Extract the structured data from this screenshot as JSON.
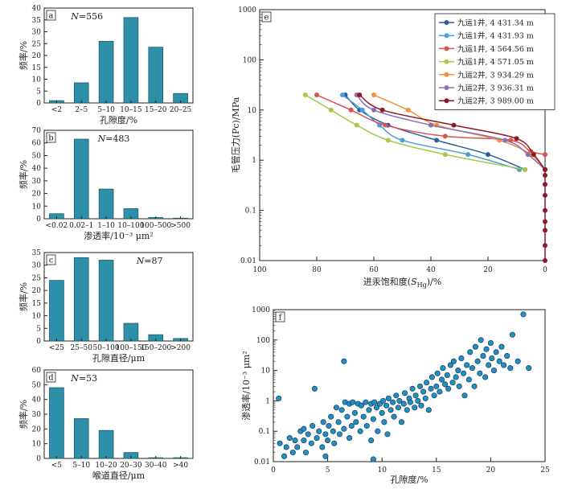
{
  "chart_data": [
    {
      "type": "bar",
      "panel": "a",
      "annotation": "N=556",
      "categories": [
        "<2",
        "2–5",
        "5–10",
        "10–15",
        "15–20",
        "20–25"
      ],
      "values": [
        1,
        8.5,
        26,
        36,
        23.5,
        4
      ],
      "xlabel": "孔隙度/%",
      "ylabel": "频率/%",
      "ylim": [
        0,
        40
      ],
      "yticks": [
        "0",
        "5",
        "10",
        "15",
        "20",
        "25",
        "30",
        "35",
        "40"
      ],
      "bar_color": "#2e8fa8"
    },
    {
      "type": "bar",
      "panel": "b",
      "annotation": "N=483",
      "categories": [
        "<0.02",
        "0.02–1",
        "1–10",
        "10–100",
        "100–500",
        ">500"
      ],
      "values": [
        4,
        63,
        23.5,
        8,
        1,
        0.5
      ],
      "xlabel": "渗透率/10⁻³ μm²",
      "ylabel": "频率/%",
      "ylim": [
        0,
        70
      ],
      "yticks": [
        "0",
        "10",
        "20",
        "30",
        "40",
        "50",
        "60",
        "70"
      ],
      "bar_color": "#2e8fa8"
    },
    {
      "type": "bar",
      "panel": "c",
      "annotation": "N=87",
      "categories": [
        "<25",
        "25–50",
        "50–100",
        "100–150",
        "150–200",
        ">200"
      ],
      "values": [
        24,
        33,
        32,
        7,
        2.5,
        1
      ],
      "xlabel": "孔隙直径/μm",
      "ylabel": "频率/%",
      "ylim": [
        0,
        35
      ],
      "yticks": [
        "0",
        "5",
        "10",
        "15",
        "20",
        "25",
        "30",
        "35"
      ],
      "bar_color": "#2e8fa8"
    },
    {
      "type": "bar",
      "panel": "d",
      "annotation": "N=53",
      "categories": [
        "<5",
        "5–10",
        "10–20",
        "20–30",
        "30–40",
        ">40"
      ],
      "values": [
        48,
        27,
        19,
        4,
        0.5,
        0.5
      ],
      "xlabel": "喉道直径/μm",
      "ylabel": "频率/%",
      "ylim": [
        0,
        60
      ],
      "yticks": [
        "0",
        "10",
        "20",
        "30",
        "40",
        "50",
        "60"
      ],
      "bar_color": "#2e8fa8"
    },
    {
      "type": "line",
      "panel": "e",
      "xlabel_prefix": "进汞饱和度(",
      "xlabel_var": "S",
      "xlabel_sub": "Hg",
      "xlabel_suffix": ")/%",
      "ylabel": "毛管压力(Pc)/MPa",
      "xlim": [
        100,
        0
      ],
      "ylim": [
        0.01,
        1000
      ],
      "yscale": "log",
      "xticks": [
        "100",
        "80",
        "60",
        "40",
        "20",
        "0"
      ],
      "yticks": [
        "0.01",
        "0.1",
        "1",
        "10",
        "100",
        "1000"
      ],
      "legend_position": "top-right",
      "common_tail": [
        [
          0,
          0.65
        ],
        [
          0,
          0.5
        ],
        [
          0,
          0.33
        ],
        [
          0,
          0.2
        ],
        [
          0,
          0.1
        ],
        [
          0,
          0.06
        ],
        [
          0,
          0.04
        ],
        [
          0,
          0.02
        ],
        [
          0,
          0.01
        ]
      ],
      "series": [
        {
          "name": "九运1井, 4 431.34 m",
          "color": "#2c5f9e",
          "points": [
            [
              70,
              20
            ],
            [
              65,
              10
            ],
            [
              55,
              5
            ],
            [
              38,
              2.5
            ],
            [
              20,
              1.3
            ],
            [
              7,
              0.65
            ]
          ]
        },
        {
          "name": "九运1井, 4 431.93 m",
          "color": "#4a9fd8",
          "points": [
            [
              71,
              20
            ],
            [
              64,
              10
            ],
            [
              58,
              5
            ],
            [
              50,
              2.5
            ],
            [
              27,
              1.3
            ],
            [
              9,
              0.65
            ]
          ]
        },
        {
          "name": "九运1井, 4 564.56 m",
          "color": "#d9534f",
          "points": [
            [
              80,
              20
            ],
            [
              68,
              10
            ],
            [
              56,
              5
            ],
            [
              35,
              3
            ],
            [
              12,
              2.5
            ],
            [
              5,
              1.5
            ],
            [
              0,
              1.3
            ]
          ]
        },
        {
          "name": "九运1井, 4 571.05 m",
          "color": "#a8c84a",
          "points": [
            [
              84,
              20
            ],
            [
              75,
              10
            ],
            [
              66,
              5
            ],
            [
              55,
              2.5
            ],
            [
              35,
              1.3
            ],
            [
              7,
              0.65
            ]
          ]
        },
        {
          "name": "九运2井, 3 934.29 m",
          "color": "#f0923a",
          "points": [
            [
              60,
              20
            ],
            [
              48,
              10
            ],
            [
              38,
              5
            ],
            [
              16,
              2.5
            ],
            [
              5,
              1.3
            ],
            [
              0,
              0.65
            ]
          ]
        },
        {
          "name": "九运2井, 3 936.31 m",
          "color": "#8a6fb8",
          "points": [
            [
              66,
              20
            ],
            [
              60,
              10
            ],
            [
              40,
              5
            ],
            [
              14,
              2.5
            ],
            [
              6,
              1.3
            ],
            [
              0,
              0.65
            ]
          ]
        },
        {
          "name": "九运2井, 3 989.00 m",
          "color": "#8b1a2b",
          "points": [
            [
              65,
              20
            ],
            [
              57,
              10
            ],
            [
              32,
              5
            ],
            [
              10,
              2.7
            ],
            [
              4,
              1.3
            ],
            [
              0,
              0.65
            ]
          ]
        }
      ]
    },
    {
      "type": "scatter",
      "panel": "f",
      "xlabel": "孔隙度/%",
      "ylabel": "渗透率/10⁻³ μm²",
      "xlim": [
        0,
        25
      ],
      "ylim": [
        0.01,
        1000
      ],
      "yscale": "log",
      "xticks": [
        "0",
        "5",
        "10",
        "15",
        "20",
        "25"
      ],
      "yticks": [
        "0.01",
        "0.1",
        "1",
        "10",
        "100",
        "1000"
      ],
      "marker_color": "#1f8fc4",
      "marker_edge": "#1a3a52",
      "points": [
        [
          0.5,
          1.2
        ],
        [
          0.6,
          0.04
        ],
        [
          1.0,
          0.015
        ],
        [
          1.2,
          0.03
        ],
        [
          1.5,
          0.06
        ],
        [
          1.8,
          0.02
        ],
        [
          2.0,
          0.05
        ],
        [
          2.2,
          0.03
        ],
        [
          2.5,
          0.1
        ],
        [
          2.8,
          0.05
        ],
        [
          3.0,
          0.02
        ],
        [
          3.2,
          0.08
        ],
        [
          3.5,
          0.04
        ],
        [
          3.6,
          0.15
        ],
        [
          3.8,
          2.5
        ],
        [
          4.0,
          0.06
        ],
        [
          4.2,
          0.1
        ],
        [
          4.5,
          0.03
        ],
        [
          4.6,
          0.2
        ],
        [
          4.8,
          0.08
        ],
        [
          5.0,
          0.05
        ],
        [
          5.1,
          0.15
        ],
        [
          5.3,
          0.3
        ],
        [
          5.5,
          0.1
        ],
        [
          5.6,
          0.04
        ],
        [
          5.8,
          0.6
        ],
        [
          6.0,
          0.2
        ],
        [
          6.1,
          0.08
        ],
        [
          6.3,
          0.5
        ],
        [
          6.5,
          0.12
        ],
        [
          6.6,
          0.9
        ],
        [
          6.8,
          0.3
        ],
        [
          7.0,
          0.06
        ],
        [
          7.0,
          0.8
        ],
        [
          7.2,
          0.15
        ],
        [
          7.3,
          0.9
        ],
        [
          7.5,
          0.4
        ],
        [
          7.6,
          0.2
        ],
        [
          7.8,
          0.8
        ],
        [
          8.0,
          0.1
        ],
        [
          8.1,
          0.7
        ],
        [
          8.3,
          0.3
        ],
        [
          8.5,
          0.9
        ],
        [
          8.6,
          0.15
        ],
        [
          8.8,
          0.5
        ],
        [
          9.0,
          0.8
        ],
        [
          9.0,
          0.05
        ],
        [
          9.2,
          0.25
        ],
        [
          9.3,
          0.9
        ],
        [
          9.5,
          0.6
        ],
        [
          9.6,
          0.1
        ],
        [
          9.8,
          0.8
        ],
        [
          10.0,
          0.4
        ],
        [
          10.1,
          1.0
        ],
        [
          10.2,
          0.2
        ],
        [
          10.4,
          0.7
        ],
        [
          10.5,
          0.08
        ],
        [
          10.6,
          1.2
        ],
        [
          10.8,
          0.5
        ],
        [
          11.0,
          0.9
        ],
        [
          11.1,
          0.3
        ],
        [
          11.3,
          1.5
        ],
        [
          11.5,
          0.6
        ],
        [
          11.6,
          1.0
        ],
        [
          11.8,
          0.2
        ],
        [
          12.0,
          0.8
        ],
        [
          12.1,
          1.8
        ],
        [
          12.3,
          0.5
        ],
        [
          12.5,
          1.2
        ],
        [
          12.6,
          0.9
        ],
        [
          12.8,
          2.5
        ],
        [
          13.0,
          0.6
        ],
        [
          13.1,
          1.5
        ],
        [
          13.3,
          1.0
        ],
        [
          13.5,
          3.0
        ],
        [
          13.6,
          0.7
        ],
        [
          13.8,
          2.0
        ],
        [
          14.0,
          1.2
        ],
        [
          14.1,
          4.0
        ],
        [
          14.3,
          0.5
        ],
        [
          14.5,
          2.5
        ],
        [
          14.6,
          6.0
        ],
        [
          14.8,
          1.5
        ],
        [
          15.0,
          3.0
        ],
        [
          15.1,
          8.0
        ],
        [
          15.3,
          2.0
        ],
        [
          15.5,
          5.0
        ],
        [
          15.6,
          12
        ],
        [
          15.8,
          3.5
        ],
        [
          16.0,
          7.0
        ],
        [
          16.1,
          2.5
        ],
        [
          16.3,
          15
        ],
        [
          16.5,
          4.0
        ],
        [
          16.6,
          20
        ],
        [
          16.8,
          6.0
        ],
        [
          17.0,
          10
        ],
        [
          17.1,
          3.0
        ],
        [
          17.3,
          25
        ],
        [
          17.5,
          8.0
        ],
        [
          17.6,
          1.5
        ],
        [
          17.8,
          15
        ],
        [
          18.0,
          5.0
        ],
        [
          18.1,
          40
        ],
        [
          18.3,
          12
        ],
        [
          18.5,
          3.0
        ],
        [
          18.6,
          60
        ],
        [
          18.8,
          20
        ],
        [
          19.0,
          8.0
        ],
        [
          19.1,
          100
        ],
        [
          19.3,
          30
        ],
        [
          19.5,
          6.0
        ],
        [
          19.6,
          50
        ],
        [
          19.8,
          15
        ],
        [
          20.0,
          80
        ],
        [
          20.1,
          25
        ],
        [
          20.3,
          10
        ],
        [
          20.5,
          40
        ],
        [
          20.8,
          20
        ],
        [
          21.0,
          60
        ],
        [
          21.2,
          15
        ],
        [
          21.5,
          30
        ],
        [
          21.8,
          12
        ],
        [
          22.0,
          150
        ],
        [
          22.5,
          20
        ],
        [
          23.0,
          700
        ],
        [
          23.5,
          12
        ],
        [
          6.5,
          20
        ],
        [
          4.8,
          0.015
        ],
        [
          9.2,
          0.012
        ],
        [
          2.8,
          0.12
        ]
      ]
    }
  ]
}
